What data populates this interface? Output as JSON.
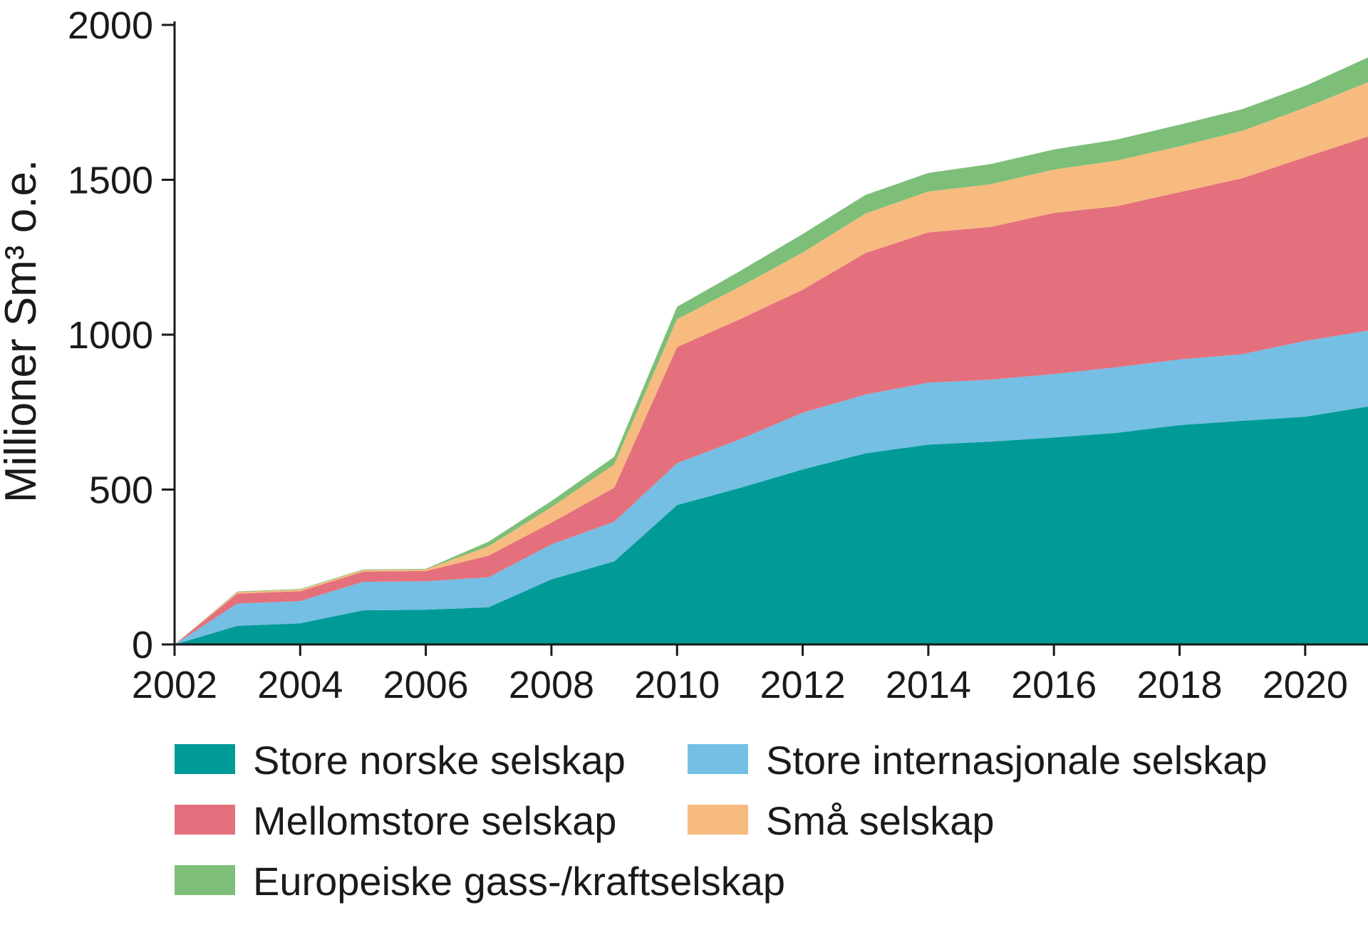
{
  "chart_data": {
    "type": "area",
    "stacked": true,
    "ylabel": "Millioner Sm³ o.e.",
    "xlabel": "",
    "ylim": [
      0,
      2000
    ],
    "xlim": [
      2002,
      2021
    ],
    "x_ticks": [
      "2002",
      "2004",
      "2006",
      "2008",
      "2010",
      "2012",
      "2014",
      "2016",
      "2018",
      "2020"
    ],
    "y_ticks": [
      "0",
      "500",
      "1000",
      "1500",
      "2000"
    ],
    "x": [
      2002,
      2003,
      2004,
      2005,
      2006,
      2007,
      2008,
      2009,
      2010,
      2011,
      2012,
      2013,
      2014,
      2015,
      2016,
      2017,
      2018,
      2019,
      2020,
      2021
    ],
    "series": [
      {
        "name": "Store norske selskap",
        "color": "#009b96",
        "values": [
          0,
          60,
          68,
          110,
          112,
          120,
          210,
          268,
          450,
          505,
          565,
          617,
          645,
          655,
          668,
          683,
          708,
          722,
          735,
          768
        ]
      },
      {
        "name": "Store internasjonale selskap",
        "color": "#74bfe3",
        "values": [
          0,
          72,
          72,
          92,
          92,
          97,
          113,
          128,
          135,
          157,
          183,
          190,
          200,
          200,
          205,
          212,
          212,
          215,
          245,
          245
        ]
      },
      {
        "name": "Mellomstore selskap",
        "color": "#e5707d",
        "values": [
          0,
          32,
          32,
          33,
          33,
          70,
          70,
          110,
          375,
          388,
          397,
          457,
          485,
          493,
          520,
          520,
          540,
          568,
          593,
          627
        ]
      },
      {
        "name": "Små selskap",
        "color": "#f7bb80",
        "values": [
          0,
          5,
          5,
          5,
          5,
          30,
          50,
          75,
          90,
          105,
          120,
          127,
          132,
          138,
          140,
          147,
          148,
          153,
          160,
          175
        ]
      },
      {
        "name": "Europeiske gass-/kraftselskap",
        "color": "#7dbf78",
        "values": [
          0,
          2,
          2,
          2,
          2,
          15,
          20,
          25,
          40,
          50,
          60,
          60,
          60,
          65,
          65,
          68,
          70,
          70,
          70,
          80
        ]
      }
    ],
    "legend_position": "bottom",
    "grid": false
  }
}
